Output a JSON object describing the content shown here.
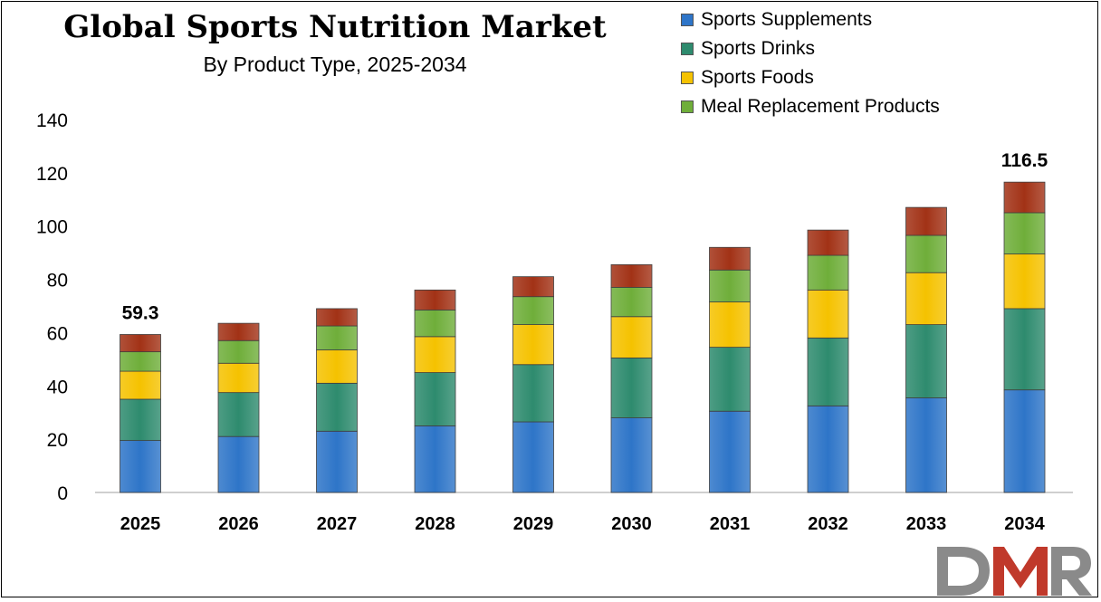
{
  "chart_data": {
    "type": "bar",
    "stacked": true,
    "title": "Global Sports Nutrition Market",
    "subtitle": "By Product Type, 2025-2034",
    "categories": [
      "2025",
      "2026",
      "2027",
      "2028",
      "2029",
      "2030",
      "2031",
      "2032",
      "2033",
      "2034"
    ],
    "series": [
      {
        "name": "Sports Supplements",
        "color": "#2E75C8",
        "values": [
          19.5,
          21,
          23,
          25,
          26.5,
          28,
          30.5,
          32.5,
          35.5,
          38.5
        ]
      },
      {
        "name": "Sports Drinks",
        "color": "#2E8B6E",
        "values": [
          15.5,
          16.5,
          18,
          20,
          21.5,
          22.5,
          24,
          25.5,
          27.5,
          30.5
        ]
      },
      {
        "name": "Sports Foods",
        "color": "#F5C200",
        "values": [
          10.5,
          11,
          12.5,
          13.5,
          15,
          15.5,
          17,
          18,
          19.5,
          20.5
        ]
      },
      {
        "name": "Meal Replacement Products",
        "color": "#6FAE3A",
        "values": [
          7.3,
          8.5,
          9,
          10,
          10.5,
          11,
          12,
          13,
          14,
          15.5
        ]
      },
      {
        "color": "#A23216",
        "values": [
          6.5,
          6.5,
          6.5,
          7.5,
          7.5,
          8.5,
          8.5,
          9.5,
          10.5,
          11.5
        ]
      }
    ],
    "ylim": [
      0,
      140
    ],
    "yticks": [
      0,
      20,
      40,
      60,
      80,
      100,
      120,
      140
    ],
    "data_labels": [
      {
        "category": "2025",
        "text": "59.3"
      },
      {
        "category": "2034",
        "text": "116.5"
      }
    ],
    "legend_position": "top-right",
    "grid": false
  },
  "logo": {
    "text": "DMR"
  }
}
